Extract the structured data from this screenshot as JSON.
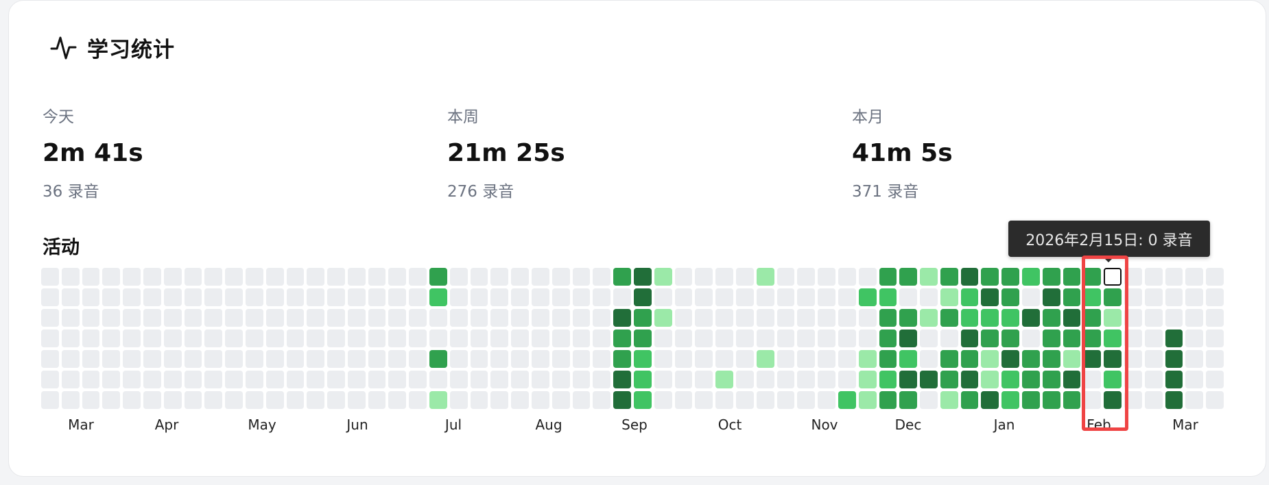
{
  "header": {
    "title": "学习统计",
    "icon": "activity-pulse-icon"
  },
  "stats": [
    {
      "label": "今天",
      "value": "2m 41s",
      "sub": "36 录音"
    },
    {
      "label": "本周",
      "value": "21m 25s",
      "sub": "276 录音"
    },
    {
      "label": "本月",
      "value": "41m 5s",
      "sub": "371 录音"
    }
  ],
  "activity": {
    "title": "活动",
    "months": [
      "Mar",
      "Apr",
      "May",
      "Jun",
      "Jul",
      "Aug",
      "Sep",
      "Oct",
      "Nov",
      "Dec",
      "Jan",
      "Feb",
      "Mar"
    ],
    "tooltip": "2026年2月15日: 0 录音",
    "selected_cell": {
      "week": 52,
      "day": 0
    },
    "colors": {
      "0": "#ebedf0",
      "1": "#9be9a8",
      "2": "#40c463",
      "3": "#30a14e",
      "4": "#216e39"
    },
    "grid_levels": [
      "0000000000000000000000000000000000000000000000000000000000",
      "0000000000000000000000000000000000000000000000000000000000",
      "0000000000000000000000000000000000000000000000000000000000",
      "0000000000000000000000000000000000000000000000000000000000",
      "0000000000000000000000000000000000000000000000000000000000",
      "0000000000000000000000000000000000000000000000000000000000",
      "0000000000000000000000000000000000000000000000000000000000",
      "0000000000000000000000000000000000000000000000000000000000",
      "0000000000000000000000000000000000000000000000000000000000",
      "0000000000000000000000000000000000000000000000000000000000",
      "0000000000000000000000000000000000000000000000000000000000",
      "0000000000000000000000000000000000000000000000000000000000",
      "0000000000000000000000000000000000000000000000000000000000",
      "0000000000000000000000000000000000000000000000000000000000",
      "0000000000000000000000000000000000000000000000000000000000",
      "0000000000000000000000000000000000000000000000000000000000",
      "0000000000000000000000000000000000000000000000000000000000",
      "0000000000000000000000000000000000000000000000000000000000",
      "0000000000000000000000000000000000000000000000000000000000"
    ],
    "weeks": [
      "0000000",
      "0000000",
      "0000000",
      "0000000",
      "0000000",
      "0000000",
      "0000000",
      "0000000",
      "0000000",
      "0000000",
      "0000000",
      "0000000",
      "0000000",
      "0000000",
      "0000000",
      "0000000",
      "0000000",
      "0000000",
      "0000000",
      "3200301",
      "0000000",
      "0000000",
      "0000000",
      "0000000",
      "0000000",
      "0000000",
      "0000000",
      "0000000",
      "3043344",
      "4433222",
      "1010000",
      "0000000",
      "0000000",
      "0000010",
      "0000000",
      "1000100",
      "0000000",
      "0000000",
      "0000000",
      "0000002",
      "0200111",
      "3233323",
      "3034243",
      "1010040",
      "3130331",
      "4224343",
      "3423114",
      "3323422",
      "2040333",
      "3433333",
      "3343143",
      "3233400",
      "4312424",
      "0000000",
      "0000000",
      "0004444",
      "0000000",
      "0000000"
    ]
  }
}
